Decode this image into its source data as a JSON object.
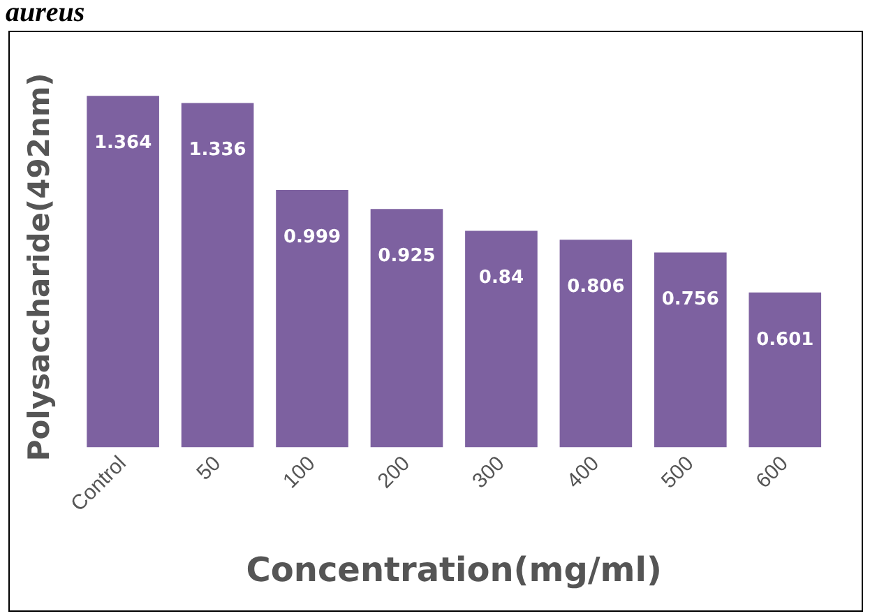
{
  "chart_data": {
    "type": "bar",
    "title": "aureus",
    "xlabel": "Concentration(mg/ml)",
    "ylabel": "Polysaccharide(492nm)",
    "categories": [
      "Control",
      "50",
      "100",
      "200",
      "300",
      "400",
      "500",
      "600"
    ],
    "values": [
      1.364,
      1.336,
      0.999,
      0.925,
      0.84,
      0.806,
      0.756,
      0.601
    ],
    "color": "#7d61a0",
    "data_labels": true,
    "grid": false,
    "legend": false
  }
}
